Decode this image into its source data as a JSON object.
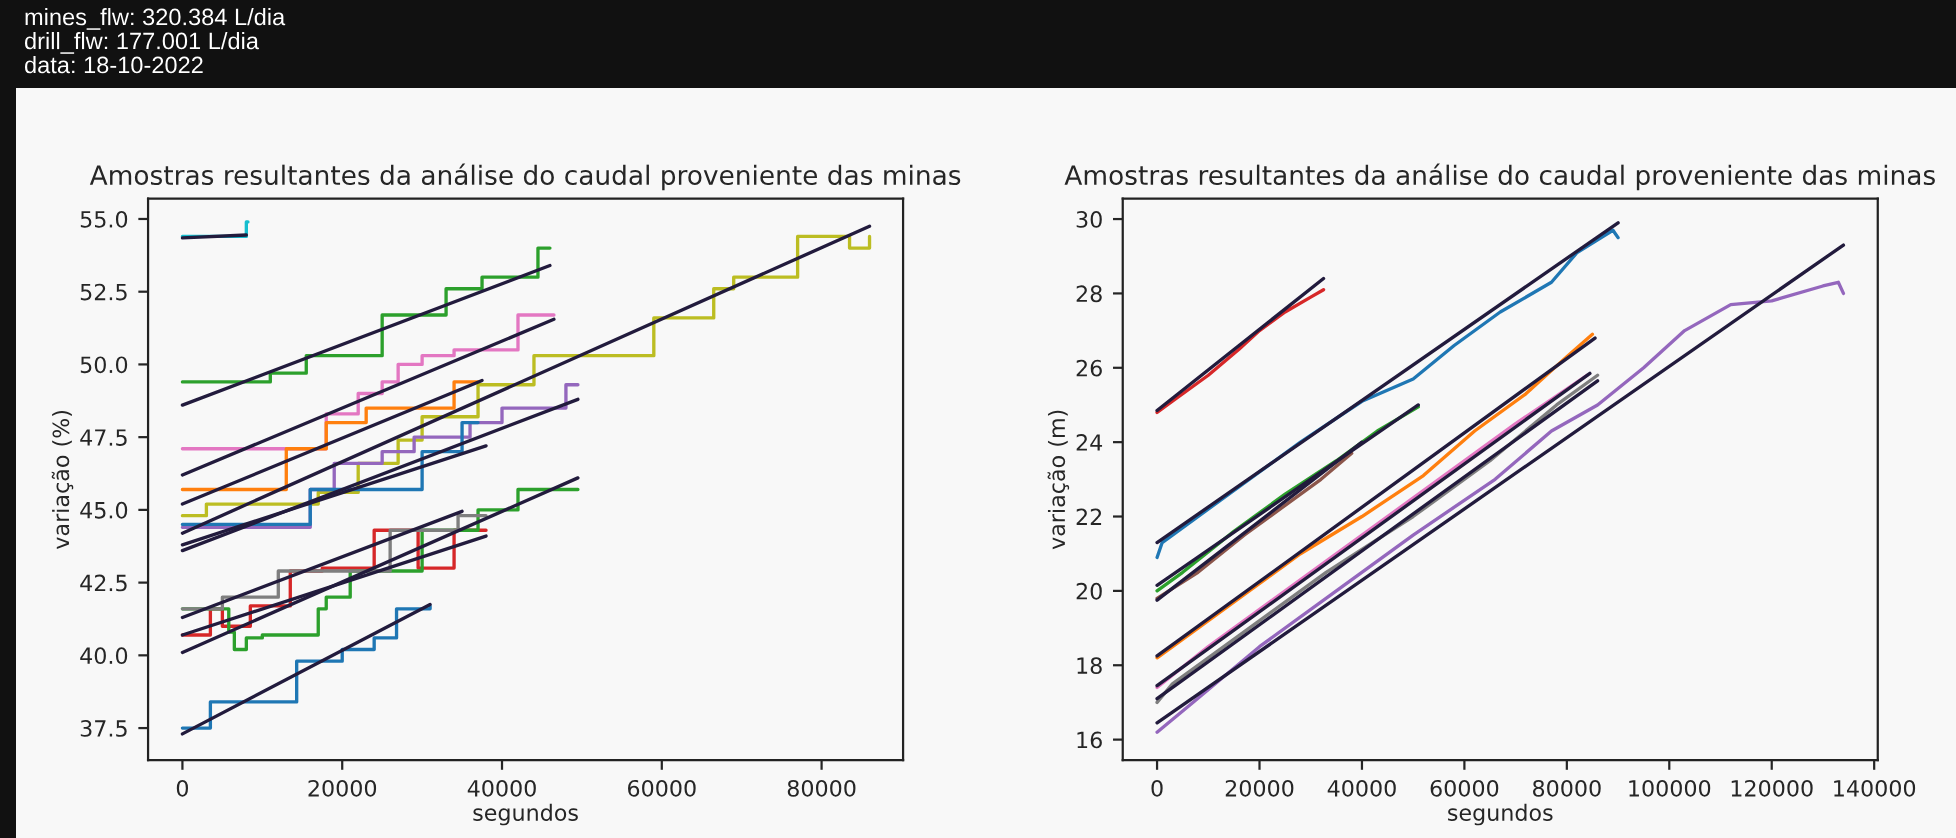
{
  "chart_data": [
    {
      "type": "line",
      "title": "Amostras resultantes da análise do caudal proveniente das minas",
      "xlabel": "segundos",
      "ylabel": "variação (%)",
      "annotations": [
        "mines_flw: 320.384 L/dia",
        "drill_flw: 177.001 L/dia",
        "data: 18-10-2022"
      ],
      "xlim": [
        -4300,
        90200
      ],
      "ylim": [
        36.4,
        55.7
      ],
      "xticks": [
        0,
        20000,
        40000,
        60000,
        80000
      ],
      "yticks": [
        {
          "value": 37.5,
          "label": "37.5"
        },
        {
          "value": 40,
          "label": "40.0"
        },
        {
          "value": 42.5,
          "label": "42.5"
        },
        {
          "value": 45,
          "label": "45.0"
        },
        {
          "value": 47.5,
          "label": "47.5"
        },
        {
          "value": 50,
          "label": "50.0"
        },
        {
          "value": 52.5,
          "label": "52.5"
        },
        {
          "value": 55,
          "label": "55.0"
        }
      ],
      "grid": false,
      "legend": false,
      "marker": "none",
      "line_style": "solid",
      "series": [
        {
          "type": "step",
          "color": "#1f77b4",
          "x": [
            0,
            3500,
            14300,
            20000,
            24000,
            26800,
            31000
          ],
          "values": [
            37.5,
            38.4,
            39.8,
            40.2,
            40.6,
            41.6,
            41.7
          ]
        },
        {
          "type": "step",
          "color": "#2ca02c",
          "x": [
            0,
            11000,
            15500,
            25000,
            33000,
            37500,
            44500,
            46000
          ],
          "values": [
            49.4,
            49.7,
            50.3,
            51.7,
            52.6,
            53.0,
            54.0,
            54.0
          ]
        },
        {
          "type": "step",
          "color": "#e377c2",
          "x": [
            0,
            18000,
            22000,
            25000,
            27000,
            30000,
            34000,
            42000,
            46500
          ],
          "values": [
            47.1,
            48.3,
            49.0,
            49.4,
            50.0,
            50.3,
            50.5,
            51.7,
            51.7
          ]
        },
        {
          "type": "step",
          "color": "#ff7f0e",
          "x": [
            0,
            13000,
            18000,
            23000,
            34000,
            37000
          ],
          "values": [
            45.7,
            47.1,
            48.0,
            48.5,
            49.4,
            49.4
          ]
        },
        {
          "type": "step",
          "color": "#bcbd22",
          "x": [
            0,
            3000,
            17000,
            22000,
            27000,
            30000,
            37000,
            44000,
            59000,
            66500,
            69000,
            77000,
            83500,
            86000
          ],
          "values": [
            44.8,
            45.2,
            45.6,
            46.6,
            47.4,
            48.2,
            49.3,
            50.3,
            51.6,
            52.6,
            53.0,
            54.4,
            54.0,
            54.4
          ]
        },
        {
          "type": "step",
          "color": "#9467bd",
          "x": [
            0,
            16000,
            19000,
            25000,
            29000,
            36000,
            40000,
            48000,
            49500
          ],
          "values": [
            44.4,
            45.7,
            46.6,
            47.0,
            47.5,
            48.0,
            48.5,
            49.3,
            49.3
          ]
        },
        {
          "type": "step",
          "color": "#1f77b4",
          "x": [
            0,
            16000,
            30000,
            35000,
            37000
          ],
          "values": [
            44.5,
            45.7,
            47.0,
            48.0,
            48.0
          ]
        },
        {
          "type": "step",
          "color": "#d62728",
          "x": [
            0,
            3500,
            5000,
            8500,
            13500,
            17500,
            24000,
            29500,
            34000,
            38000
          ],
          "values": [
            40.7,
            41.6,
            41.0,
            41.7,
            42.9,
            43.0,
            44.3,
            43.0,
            44.3,
            44.3
          ]
        },
        {
          "type": "step",
          "color": "#2ca02c",
          "x": [
            0,
            5800,
            6500,
            8000,
            10000,
            17000,
            18000,
            21000,
            30000,
            37000,
            42000,
            49500
          ],
          "values": [
            41.6,
            40.8,
            40.2,
            40.6,
            40.7,
            41.6,
            42.0,
            42.9,
            44.3,
            45.0,
            45.7,
            45.7
          ]
        },
        {
          "type": "step",
          "color": "#7f7f7f",
          "x": [
            0,
            5000,
            12000,
            26000,
            34500,
            38000
          ],
          "values": [
            41.6,
            42.0,
            42.9,
            44.3,
            44.8,
            44.8
          ]
        },
        {
          "type": "step",
          "color": "#17becf",
          "x": [
            0,
            8000,
            8200
          ],
          "values": [
            54.4,
            54.9,
            54.9
          ]
        },
        {
          "type": "line",
          "color": "#221b3d",
          "x": [
            0,
            31000
          ],
          "values": [
            37.3,
            41.75
          ]
        },
        {
          "type": "line",
          "color": "#221b3d",
          "x": [
            0,
            46000
          ],
          "values": [
            48.6,
            53.4
          ]
        },
        {
          "type": "line",
          "color": "#221b3d",
          "x": [
            0,
            46500
          ],
          "values": [
            46.2,
            51.55
          ]
        },
        {
          "type": "line",
          "color": "#221b3d",
          "x": [
            0,
            37500
          ],
          "values": [
            45.2,
            49.45
          ]
        },
        {
          "type": "line",
          "color": "#221b3d",
          "x": [
            0,
            86000
          ],
          "values": [
            44.2,
            54.75
          ]
        },
        {
          "type": "line",
          "color": "#221b3d",
          "x": [
            0,
            49500
          ],
          "values": [
            43.6,
            48.8
          ]
        },
        {
          "type": "line",
          "color": "#221b3d",
          "x": [
            0,
            38000
          ],
          "values": [
            43.8,
            47.2
          ]
        },
        {
          "type": "line",
          "color": "#221b3d",
          "x": [
            0,
            38000
          ],
          "values": [
            40.7,
            44.1
          ]
        },
        {
          "type": "line",
          "color": "#221b3d",
          "x": [
            0,
            49500
          ],
          "values": [
            40.1,
            46.1
          ]
        },
        {
          "type": "line",
          "color": "#221b3d",
          "x": [
            0,
            35000
          ],
          "values": [
            41.3,
            44.95
          ]
        },
        {
          "type": "line",
          "color": "#221b3d",
          "x": [
            0,
            8000
          ],
          "values": [
            54.35,
            54.45
          ]
        }
      ]
    },
    {
      "type": "line",
      "title": "Amostras resultantes da análise do caudal proveniente das minas",
      "xlabel": "segundos",
      "ylabel": "variação (m)",
      "xlim": [
        -6700,
        140700
      ],
      "ylim": [
        15.45,
        30.55
      ],
      "xticks": [
        0,
        20000,
        40000,
        60000,
        80000,
        100000,
        120000,
        140000
      ],
      "yticks": [
        16,
        18,
        20,
        22,
        24,
        26,
        28,
        30
      ],
      "grid": false,
      "legend": false,
      "marker": "none",
      "line_style": "solid",
      "series": [
        {
          "type": "line",
          "color": "#d62728",
          "x": [
            0,
            3000,
            10000,
            16000,
            20000,
            25000,
            30000,
            32500
          ],
          "values": [
            24.8,
            25.1,
            25.8,
            26.5,
            27.0,
            27.5,
            27.9,
            28.1
          ]
        },
        {
          "type": "line",
          "color": "#1f77b4",
          "x": [
            0,
            1000,
            12000,
            20000,
            28000,
            40000,
            50000,
            58000,
            67000,
            77000,
            82000,
            89000,
            90000
          ],
          "values": [
            20.9,
            21.3,
            22.4,
            23.2,
            24.0,
            25.1,
            25.7,
            26.6,
            27.5,
            28.3,
            29.1,
            29.7,
            29.5
          ]
        },
        {
          "type": "line",
          "color": "#2ca02c",
          "x": [
            0,
            5000,
            15000,
            25000,
            35000,
            43000,
            51000
          ],
          "values": [
            20.0,
            20.5,
            21.6,
            22.6,
            23.5,
            24.3,
            24.95
          ]
        },
        {
          "type": "line",
          "color": "#8c564b",
          "x": [
            0,
            8000,
            17000,
            25000,
            32000,
            38000
          ],
          "values": [
            19.8,
            20.5,
            21.5,
            22.3,
            23.0,
            23.7
          ]
        },
        {
          "type": "line",
          "color": "#ff7f0e",
          "x": [
            0,
            8000,
            18000,
            28000,
            40000,
            52000,
            62000,
            72000,
            80000,
            85000
          ],
          "values": [
            18.2,
            19.0,
            20.0,
            21.0,
            22.0,
            23.1,
            24.3,
            25.3,
            26.3,
            26.9
          ]
        },
        {
          "type": "line",
          "color": "#e377c2",
          "x": [
            0,
            10000,
            25000,
            40000,
            55000,
            70000,
            84000
          ],
          "values": [
            17.4,
            18.5,
            20.0,
            21.5,
            23.0,
            24.5,
            25.8
          ]
        },
        {
          "type": "line",
          "color": "#7f7f7f",
          "x": [
            0,
            3000,
            18000,
            33000,
            50000,
            65000,
            78000,
            86000
          ],
          "values": [
            17.0,
            17.5,
            19.0,
            20.5,
            22.0,
            23.5,
            25.0,
            25.8
          ]
        },
        {
          "type": "line",
          "color": "#9467bd",
          "x": [
            0,
            7000,
            20000,
            35000,
            50000,
            66000,
            77000,
            86000,
            95000,
            103000,
            112000,
            120000,
            130000,
            133000,
            134000
          ],
          "values": [
            16.2,
            17.0,
            18.5,
            20.0,
            21.5,
            23.0,
            24.3,
            25.0,
            26.0,
            27.0,
            27.7,
            27.8,
            28.2,
            28.3,
            28.0
          ]
        },
        {
          "type": "line",
          "color": "#221b3d",
          "x": [
            0,
            32500
          ],
          "values": [
            24.85,
            28.4
          ]
        },
        {
          "type": "line",
          "color": "#221b3d",
          "x": [
            0,
            90000
          ],
          "values": [
            21.3,
            29.9
          ]
        },
        {
          "type": "line",
          "color": "#221b3d",
          "x": [
            0,
            51000
          ],
          "values": [
            20.15,
            25.0
          ]
        },
        {
          "type": "line",
          "color": "#221b3d",
          "x": [
            0,
            40000
          ],
          "values": [
            19.75,
            24.0
          ]
        },
        {
          "type": "line",
          "color": "#221b3d",
          "x": [
            0,
            85500
          ],
          "values": [
            18.25,
            26.8
          ]
        },
        {
          "type": "line",
          "color": "#221b3d",
          "x": [
            0,
            84500
          ],
          "values": [
            17.45,
            25.85
          ]
        },
        {
          "type": "line",
          "color": "#221b3d",
          "x": [
            0,
            86000
          ],
          "values": [
            17.1,
            25.65
          ]
        },
        {
          "type": "line",
          "color": "#221b3d",
          "x": [
            0,
            134000
          ],
          "values": [
            16.45,
            29.3
          ]
        }
      ]
    }
  ]
}
